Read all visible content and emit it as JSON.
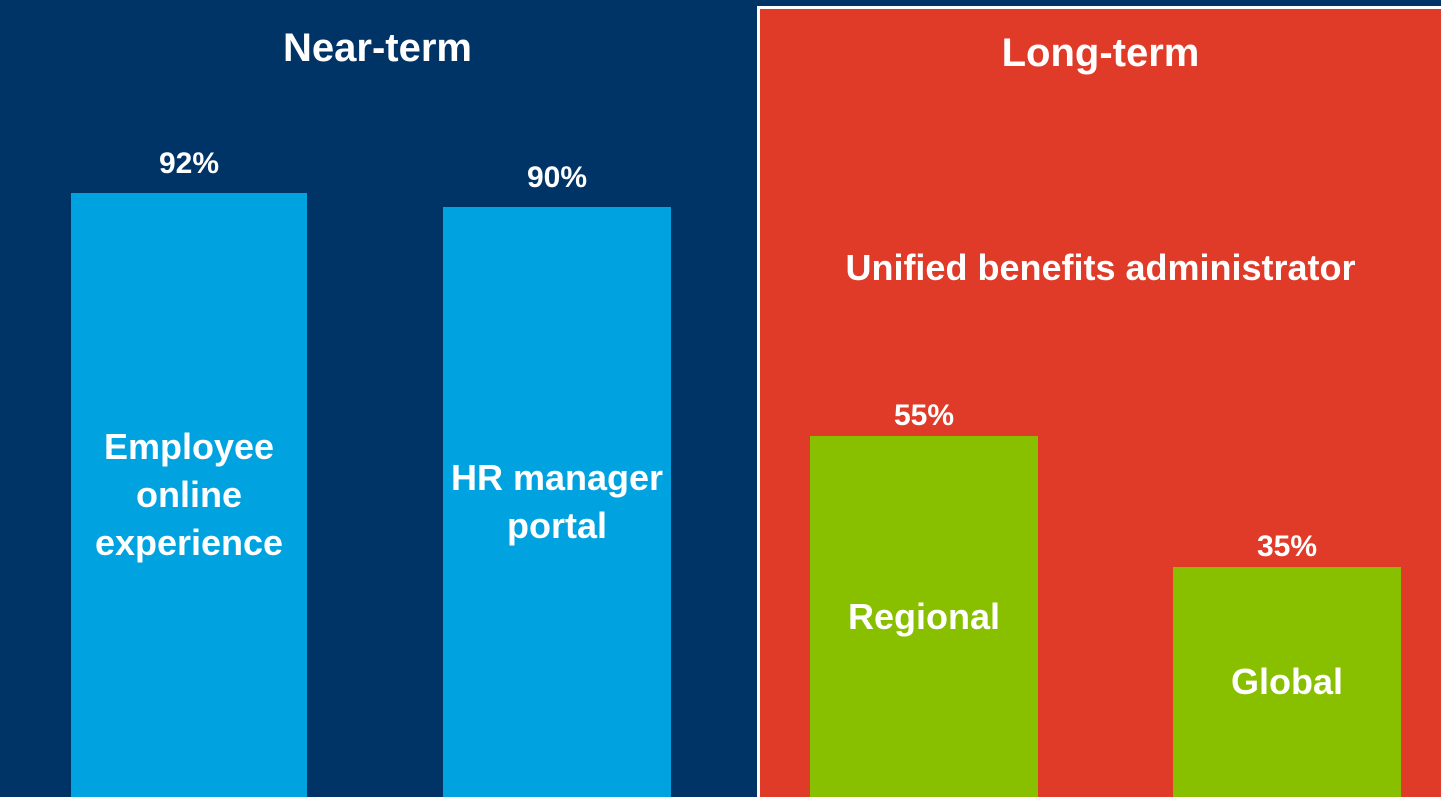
{
  "chart_data": [
    {
      "type": "bar",
      "title": "Near-term",
      "categories": [
        "Employee online experience",
        "HR manager portal"
      ],
      "values": [
        92,
        90
      ],
      "value_labels": [
        "92%",
        "90%"
      ],
      "color": "#00a3e0",
      "background": "#003466",
      "ylim": [
        0,
        100
      ]
    },
    {
      "type": "bar",
      "title": "Long-term",
      "subtitle": "Unified benefits administrator",
      "categories": [
        "Regional",
        "Global"
      ],
      "values": [
        55,
        35
      ],
      "value_labels": [
        "55%",
        "35%"
      ],
      "color": "#88c000",
      "background": "#e03a28",
      "ylim": [
        0,
        100
      ]
    }
  ]
}
